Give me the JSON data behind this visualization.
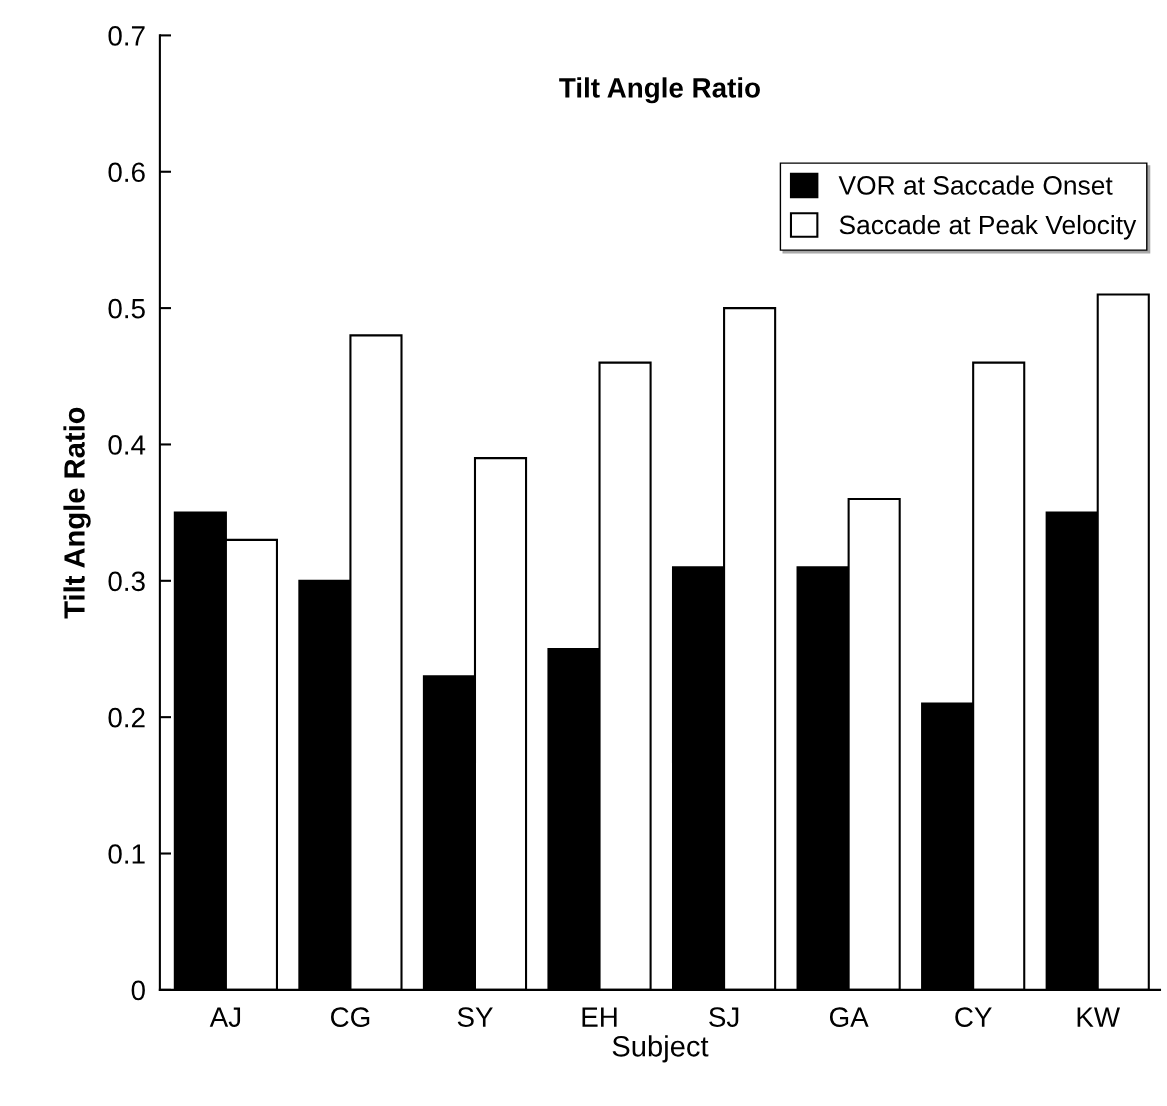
{
  "chart_data": {
    "type": "bar",
    "title": "Tilt Angle Ratio",
    "xlabel": "Subject",
    "ylabel": "Tilt Angle Ratio",
    "categories": [
      "AJ",
      "CG",
      "SY",
      "EH",
      "SJ",
      "GA",
      "CY",
      "KW"
    ],
    "series": [
      {
        "name": "VOR at Saccade Onset",
        "color": "#000000",
        "values": [
          0.35,
          0.3,
          0.23,
          0.25,
          0.31,
          0.31,
          0.21,
          0.35
        ]
      },
      {
        "name": "Saccade at Peak Velocity",
        "color": "#ffffff",
        "values": [
          0.33,
          0.48,
          0.39,
          0.46,
          0.5,
          0.36,
          0.46,
          0.51
        ]
      }
    ],
    "ylim": [
      0,
      0.7
    ],
    "yticks": [
      {
        "value": 0,
        "label": "0"
      },
      0.1,
      0.2,
      0.3,
      0.4,
      0.5,
      0.6,
      0.7
    ],
    "grid": false,
    "legend": "top right"
  }
}
